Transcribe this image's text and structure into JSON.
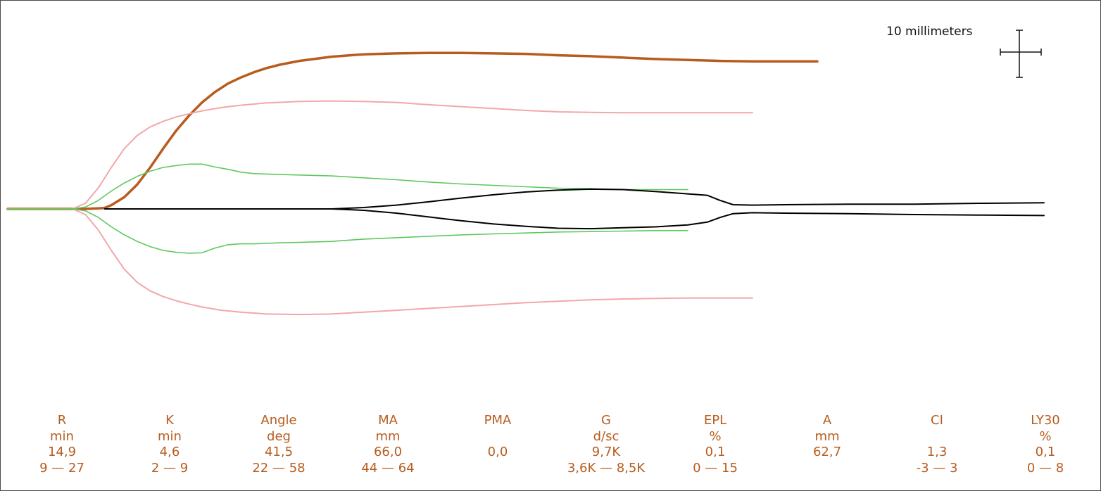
{
  "scale_label": "10 millimeters",
  "colors": {
    "patient": "#b85c1e",
    "range_outer": "#f2a7aa",
    "range_inner": "#5ec95e",
    "lysis": "#000000",
    "text": "#b85c1e",
    "frame": "#4a4a4a"
  },
  "parameters": [
    {
      "name": "R",
      "unit": "min",
      "value": "14,9",
      "range": "9 — 27"
    },
    {
      "name": "K",
      "unit": "min",
      "value": "4,6",
      "range": "2 — 9"
    },
    {
      "name": "Angle",
      "unit": "deg",
      "value": "41,5",
      "range": "22 — 58"
    },
    {
      "name": "MA",
      "unit": "mm",
      "value": "66,0",
      "range": "44 — 64"
    },
    {
      "name": "PMA",
      "unit": "",
      "value": "0,0",
      "range": ""
    },
    {
      "name": "G",
      "unit": "d/sc",
      "value": "9,7K",
      "range": "3,6K — 8,5K"
    },
    {
      "name": "EPL",
      "unit": "%",
      "value": "0,1",
      "range": "0 — 15"
    },
    {
      "name": "A",
      "unit": "mm",
      "value": "62,7",
      "range": ""
    },
    {
      "name": "CI",
      "unit": "",
      "value": "1,3",
      "range": "-3 — 3"
    },
    {
      "name": "LY30",
      "unit": "%",
      "value": "0,1",
      "range": "0 — 8"
    }
  ],
  "chart_data": {
    "type": "line",
    "xlabel": "",
    "ylabel": "",
    "ylim": [
      -36,
      36
    ],
    "grid": false,
    "legend": "none",
    "series": [
      {
        "role": "patient",
        "x": [
          0,
          12,
          14.9,
          16,
          18,
          20,
          22,
          24,
          26,
          28,
          30,
          32,
          34,
          36,
          38,
          40,
          42,
          45,
          50,
          55,
          60,
          65,
          70,
          75,
          80,
          85,
          90,
          95,
          100,
          105,
          110,
          115,
          120,
          125
        ],
        "y": [
          0,
          0,
          0.2,
          0.8,
          2.5,
          5.2,
          8.8,
          12.8,
          16.6,
          19.8,
          22.6,
          24.8,
          26.6,
          27.9,
          29,
          29.9,
          30.6,
          31.4,
          32.3,
          32.8,
          33,
          33.1,
          33.1,
          33,
          32.9,
          32.6,
          32.4,
          32.1,
          31.8,
          31.6,
          31.4,
          31.3,
          31.3,
          31.3
        ]
      },
      {
        "role": "range_outer",
        "x": [
          0,
          10,
          12,
          14,
          16,
          18,
          20,
          22,
          24,
          26,
          28,
          30,
          33,
          36,
          40,
          45,
          50,
          55,
          60,
          65,
          70,
          75,
          80,
          85,
          90,
          95,
          100,
          105,
          110,
          115
        ],
        "y": [
          0,
          0,
          1.2,
          4.5,
          8.8,
          12.8,
          15.6,
          17.4,
          18.6,
          19.5,
          20.2,
          20.8,
          21.5,
          22,
          22.5,
          22.8,
          22.9,
          22.8,
          22.6,
          22.1,
          21.7,
          21.3,
          20.9,
          20.6,
          20.5,
          20.4,
          20.4,
          20.4,
          20.4,
          20.4
        ]
      },
      {
        "role": "range_outer",
        "x": [
          0,
          10,
          12,
          14,
          16,
          18,
          20,
          22,
          24,
          26,
          28,
          30,
          33,
          36,
          40,
          45,
          50,
          55,
          60,
          65,
          70,
          75,
          80,
          85,
          90,
          95,
          100,
          105,
          110,
          115
        ],
        "y": [
          0,
          0,
          -1.2,
          -4.5,
          -8.8,
          -12.8,
          -15.6,
          -17.4,
          -18.6,
          -19.5,
          -20.2,
          -20.8,
          -21.5,
          -21.9,
          -22.3,
          -22.4,
          -22.3,
          -21.9,
          -21.5,
          -21.1,
          -20.7,
          -20.3,
          -19.9,
          -19.6,
          -19.3,
          -19.1,
          -19,
          -18.9,
          -18.9,
          -18.9
        ]
      },
      {
        "role": "range_inner",
        "x": [
          0,
          10,
          12,
          14,
          16,
          18,
          20,
          22,
          24,
          26,
          28,
          30,
          32,
          34,
          36,
          38,
          40,
          42,
          45,
          50,
          55,
          60,
          65,
          70,
          75,
          80,
          85,
          90,
          95,
          100,
          105
        ],
        "y": [
          0,
          0,
          0.4,
          1.8,
          3.8,
          5.5,
          6.9,
          8,
          8.8,
          9.2,
          9.5,
          9.5,
          8.9,
          8.4,
          7.8,
          7.5,
          7.4,
          7.3,
          7.2,
          7,
          6.6,
          6.2,
          5.7,
          5.3,
          5,
          4.7,
          4.4,
          4.3,
          4.1,
          4.1,
          4.1
        ]
      },
      {
        "role": "range_inner",
        "x": [
          0,
          10,
          12,
          14,
          16,
          18,
          20,
          22,
          24,
          26,
          28,
          30,
          32,
          34,
          36,
          38,
          40,
          42,
          45,
          50,
          55,
          60,
          65,
          70,
          75,
          80,
          85,
          90,
          95,
          100,
          105
        ],
        "y": [
          0,
          0,
          -0.4,
          -1.8,
          -3.8,
          -5.5,
          -6.9,
          -8,
          -8.8,
          -9.2,
          -9.4,
          -9.3,
          -8.3,
          -7.6,
          -7.4,
          -7.4,
          -7.3,
          -7.2,
          -7.1,
          -6.9,
          -6.4,
          -6.1,
          -5.8,
          -5.5,
          -5.3,
          -5.1,
          -4.9,
          -4.8,
          -4.7,
          -4.6,
          -4.6
        ]
      },
      {
        "role": "lysis",
        "x": [
          15,
          50,
          55,
          60,
          65,
          70,
          75,
          80,
          85,
          90,
          95,
          100,
          105,
          108,
          110,
          112,
          115,
          120,
          130,
          140,
          150,
          160
        ],
        "y": [
          0,
          0,
          0.3,
          0.8,
          1.5,
          2.3,
          3,
          3.6,
          4,
          4.2,
          4.1,
          3.7,
          3.2,
          2.9,
          1.8,
          0.9,
          0.8,
          0.9,
          1,
          1,
          1.2,
          1.3
        ]
      },
      {
        "role": "lysis",
        "x": [
          15,
          50,
          55,
          60,
          65,
          70,
          75,
          80,
          85,
          90,
          95,
          100,
          105,
          108,
          110,
          112,
          115,
          120,
          130,
          140,
          150,
          160
        ],
        "y": [
          0,
          0,
          -0.3,
          -0.9,
          -1.7,
          -2.5,
          -3.2,
          -3.7,
          -4.1,
          -4.2,
          -4,
          -3.8,
          -3.4,
          -2.8,
          -1.8,
          -1,
          -0.8,
          -0.9,
          -1,
          -1.2,
          -1.3,
          -1.4
        ]
      }
    ]
  }
}
